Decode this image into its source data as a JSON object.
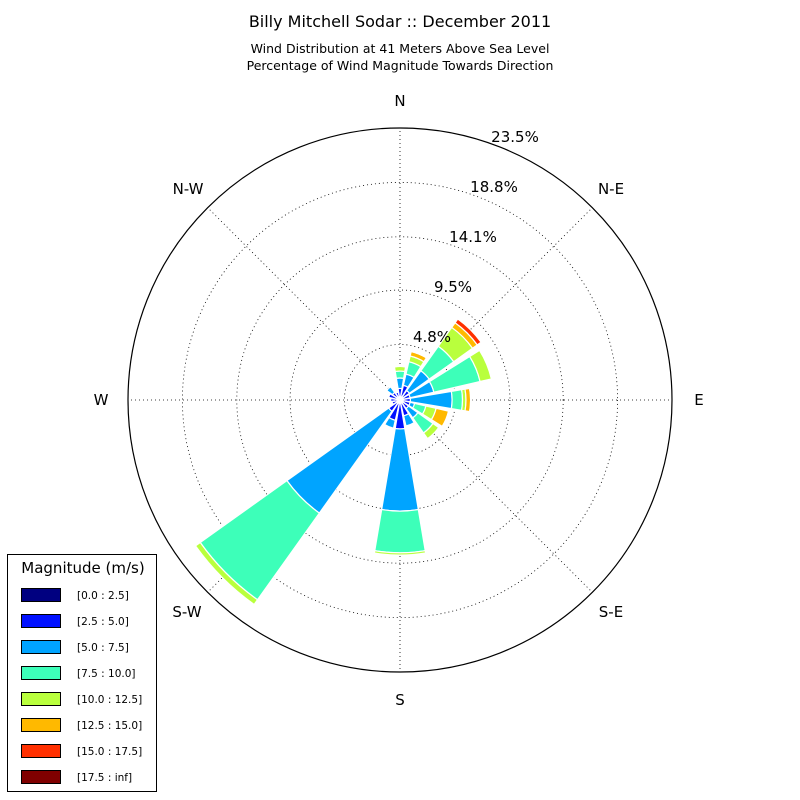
{
  "chart_data": {
    "type": "windrose",
    "title": "Billy Mitchell Sodar :: December 2011",
    "subtitle_lines": [
      "Wind Distribution at 41 Meters Above Sea Level",
      "Percentage of Wind Magnitude Towards Direction"
    ],
    "units": "%",
    "radial_ticks": [
      "4.8%",
      "9.5%",
      "14.1%",
      "18.8%",
      "23.5%"
    ],
    "radial_tick_values": [
      4.8,
      9.5,
      14.1,
      18.8,
      23.5
    ],
    "radial_max": 23.5,
    "direction_labels": {
      "N": "N",
      "NE": "N-E",
      "E": "E",
      "SE": "S-E",
      "S": "S",
      "SW": "S-W",
      "W": "W",
      "NW": "N-W"
    },
    "grid": true,
    "legend_position": "bottom-left",
    "legend_title": "Magnitude (m/s)",
    "bins": [
      {
        "label": "[0.0 : 2.5]",
        "color": "#000080"
      },
      {
        "label": "[2.5 : 5.0]",
        "color": "#0010ff"
      },
      {
        "label": "[5.0 : 7.5]",
        "color": "#00a4ff"
      },
      {
        "label": "[7.5 : 10.0]",
        "color": "#3dffb9"
      },
      {
        "label": "[10.0 : 12.5]",
        "color": "#b9ff3d"
      },
      {
        "label": "[12.5 : 15.0]",
        "color": "#ffb900"
      },
      {
        "label": "[15.0 : 17.5]",
        "color": "#ff3000"
      },
      {
        "label": "[17.5 : inf]",
        "color": "#800000"
      }
    ],
    "directions_deg": [
      0,
      22.5,
      45,
      67.5,
      90,
      112.5,
      135,
      157.5,
      180,
      202.5,
      225,
      247.5,
      270,
      292.5,
      315,
      337.5
    ],
    "cumulative_percent": [
      [
        0.2,
        1.0,
        1.9,
        2.5,
        2.9,
        3.0,
        3.0,
        3.0
      ],
      [
        0.2,
        1.3,
        2.3,
        3.4,
        3.9,
        4.3,
        4.4,
        4.4
      ],
      [
        0.2,
        1.0,
        3.1,
        5.7,
        7.7,
        8.2,
        8.6,
        8.6
      ],
      [
        0.2,
        0.9,
        3.0,
        7.1,
        8.1,
        8.1,
        8.1,
        8.1
      ],
      [
        0.2,
        0.9,
        4.5,
        5.4,
        5.7,
        6.1,
        6.2,
        6.2
      ],
      [
        0.2,
        0.9,
        1.3,
        2.3,
        3.2,
        4.3,
        4.3,
        4.3
      ],
      [
        0.2,
        0.9,
        1.9,
        3.5,
        4.1,
        4.1,
        4.1,
        4.1
      ],
      [
        0.2,
        1.4,
        2.3,
        2.3,
        2.3,
        2.3,
        2.3,
        2.3
      ],
      [
        0.2,
        2.5,
        9.6,
        13.2,
        13.4,
        13.4,
        13.4,
        13.4
      ],
      [
        0.2,
        1.8,
        2.5,
        2.5,
        2.5,
        2.5,
        2.5,
        2.5
      ],
      [
        0.2,
        1.2,
        12.0,
        21.2,
        21.7,
        21.7,
        21.7,
        21.7
      ],
      [
        0.2,
        0.7,
        0.7,
        0.7,
        0.7,
        0.7,
        0.7,
        0.7
      ],
      [
        0.2,
        0.8,
        0.8,
        0.8,
        0.8,
        0.8,
        0.8,
        0.8
      ],
      [
        0.2,
        1.0,
        1.0,
        1.0,
        1.0,
        1.0,
        1.0,
        1.0
      ],
      [
        0.2,
        0.8,
        1.4,
        1.4,
        1.4,
        1.4,
        1.4,
        1.4
      ],
      [
        0.2,
        0.7,
        0.7,
        0.7,
        0.7,
        0.7,
        0.7,
        0.7
      ]
    ]
  }
}
